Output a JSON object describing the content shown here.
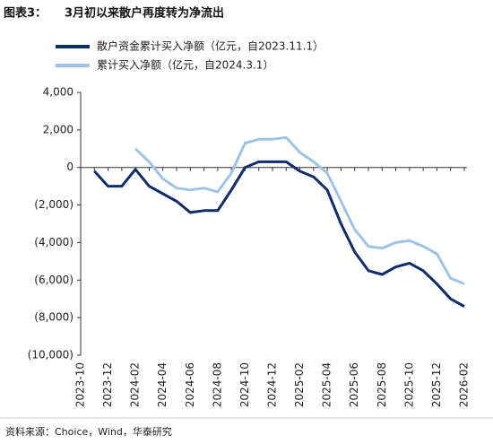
{
  "chart_data": {
    "type": "line",
    "figure_label": "图表3：",
    "title": "3月初以来散户再度转为净流出",
    "source": "资料来源：Choice，Wind，华泰研究",
    "categories": [
      "2023-10",
      null,
      "2023-12",
      null,
      "2024-02",
      null,
      "2024-04",
      null,
      "2024-06",
      null,
      "2024-08",
      null,
      "2024-10",
      null,
      "2024-12",
      null,
      "2025-02",
      null,
      "2025-04",
      null,
      "2025-06",
      null,
      "2025-08",
      null,
      "2025-10",
      null,
      "2025-12",
      null,
      "2026-02"
    ],
    "series": [
      {
        "name": "散户资金累计买入净额（亿元，自2023.11.1）",
        "color": "#0d2d6b",
        "values": [
          null,
          -200,
          -1000,
          -1000,
          -100,
          -1000,
          -1400,
          -1800,
          -2400,
          -2300,
          -2300,
          -1200,
          0,
          300,
          300,
          300,
          -200,
          -500,
          -1200,
          -3000,
          -4500,
          -5500,
          -5700,
          -5300,
          -5100,
          -5500,
          -6200,
          -7000,
          -7400
        ]
      },
      {
        "name": "累计买入净额（亿元，自2024.3.1）",
        "color": "#9dc3e6",
        "values": [
          null,
          null,
          null,
          null,
          1000,
          300,
          -600,
          -1100,
          -1200,
          -1100,
          -1300,
          -300,
          1300,
          1500,
          1500,
          1600,
          800,
          300,
          -300,
          -1800,
          -3300,
          -4200,
          -4300,
          -4000,
          -3900,
          -4200,
          -4600,
          -5900,
          -6200
        ]
      }
    ],
    "ylim": [
      -10000,
      4000
    ],
    "yticks": [
      {
        "value": 4000,
        "label": "4,000"
      },
      {
        "value": 2000,
        "label": "2,000"
      },
      0,
      {
        "value": -2000,
        "label": "(2,000)"
      },
      {
        "value": -4000,
        "label": "(4,000)"
      },
      {
        "value": -6000,
        "label": "(6,000)"
      },
      {
        "value": -8000,
        "label": "(8,000)"
      },
      {
        "value": -10000,
        "label": "(10,000)"
      }
    ]
  }
}
